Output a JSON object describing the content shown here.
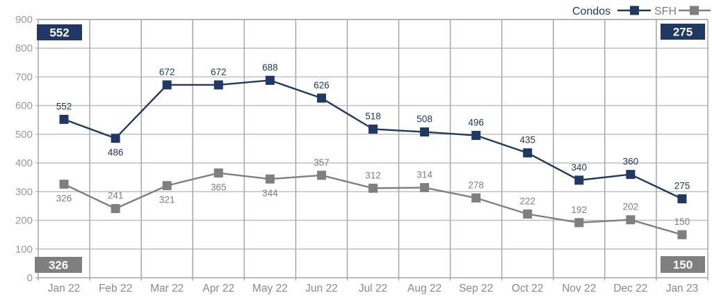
{
  "chart_data": {
    "type": "line",
    "categories": [
      "Jan 22",
      "Feb 22",
      "Mar 22",
      "Apr 22",
      "May 22",
      "Jun 22",
      "Jul 22",
      "Aug 22",
      "Sep 22",
      "Oct 22",
      "Nov 22",
      "Dec 22",
      "Jan 23"
    ],
    "series": [
      {
        "name": "Condos",
        "color": "#1f3864",
        "values": [
          552,
          486,
          672,
          672,
          688,
          626,
          518,
          508,
          496,
          435,
          340,
          360,
          275
        ],
        "label_positions": [
          "above",
          "below",
          "above",
          "above",
          "above",
          "above",
          "above",
          "above",
          "above",
          "above",
          "above",
          "above",
          "above"
        ]
      },
      {
        "name": "SFH",
        "color": "#7f7f7f",
        "values": [
          326,
          241,
          321,
          365,
          344,
          357,
          312,
          314,
          278,
          222,
          192,
          202,
          150
        ],
        "label_positions": [
          "below",
          "above",
          "below",
          "below",
          "below",
          "above",
          "above",
          "above",
          "above",
          "above",
          "above",
          "above",
          "above"
        ]
      }
    ],
    "title": "",
    "xlabel": "",
    "ylabel": "",
    "ylim": [
      0,
      900
    ],
    "ytick_step": 100,
    "grid": true,
    "legend_position": "top-right",
    "legend": [
      {
        "label": "Condos",
        "color": "#1f3864"
      },
      {
        "label": "SFH",
        "color": "#7f7f7f"
      }
    ],
    "callouts": [
      {
        "text": "552",
        "series": "Condos",
        "position": "top-left"
      },
      {
        "text": "275",
        "series": "Condos",
        "position": "top-right"
      },
      {
        "text": "326",
        "series": "SFH",
        "position": "bottom-left"
      },
      {
        "text": "150",
        "series": "SFH",
        "position": "bottom-right"
      }
    ]
  },
  "colors": {
    "condos": "#1f3864",
    "sfh": "#7f7f7f",
    "grid_horizontal": "#bfbfbf",
    "grid_vertical": "#a6a6a6",
    "axis_text": "#9a9a9a",
    "x_axis_text": "#8a8a8a",
    "callout_text": "#ffffff",
    "background": "#ffffff"
  }
}
